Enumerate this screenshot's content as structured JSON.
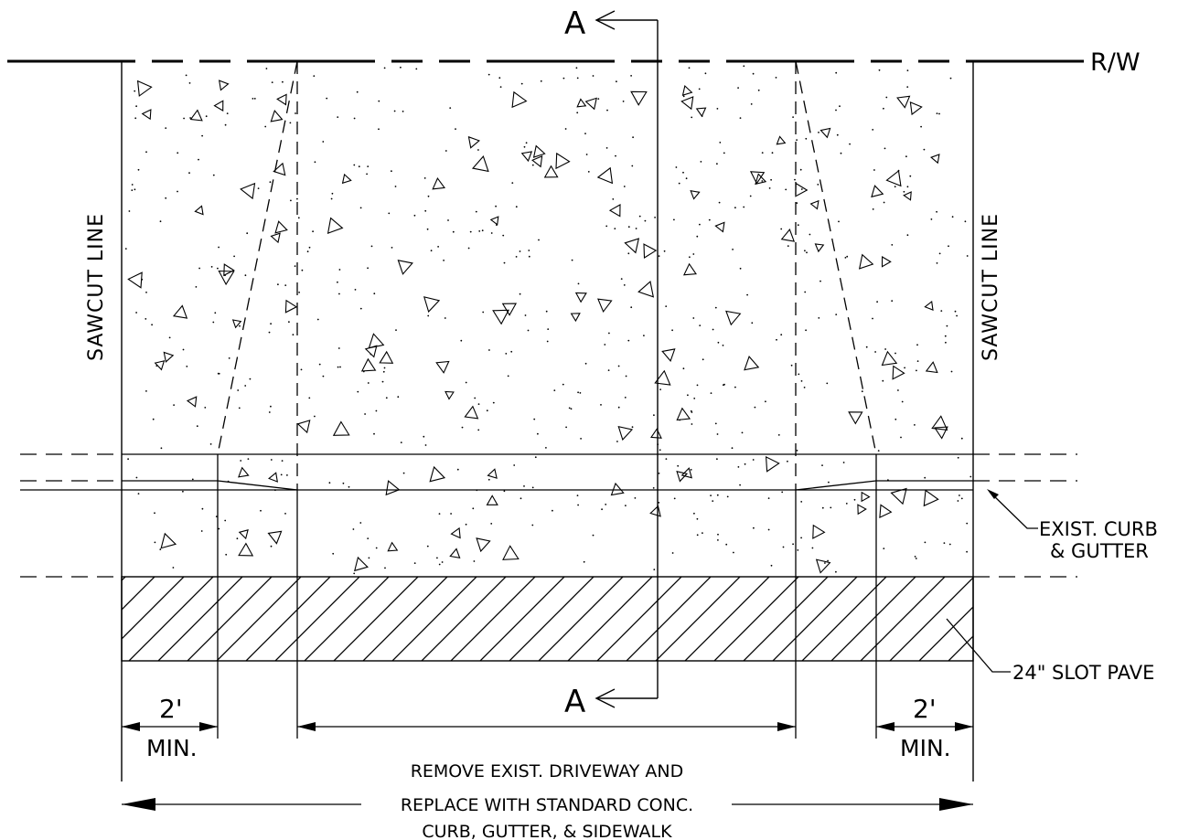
{
  "labels": {
    "rw": "R/W",
    "section_top": "A",
    "section_bottom": "A",
    "sawcut_left": "SAWCUT LINE",
    "sawcut_right": "SAWCUT LINE",
    "exist_curb_1": "EXIST. CURB",
    "exist_curb_2": "& GUTTER",
    "slot_pave": "24\" SLOT PAVE",
    "dim_left_value": "2'",
    "dim_left_note": "MIN.",
    "dim_right_value": "2'",
    "dim_right_note": "MIN.",
    "remove_note_1": "REMOVE EXIST. DRIVEWAY AND",
    "remove_note_2": "REPLACE WITH STANDARD CONC.",
    "remove_note_3": "CURB, GUTTER, & SIDEWALK"
  }
}
